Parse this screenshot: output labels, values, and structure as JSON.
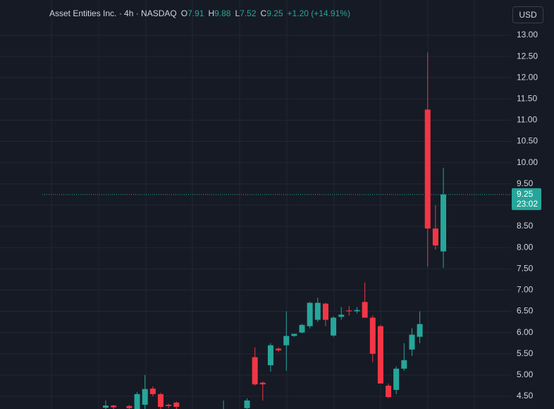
{
  "chart_data": {
    "type": "candlestick",
    "symbol": "Asset Entities Inc. · 4h · NASDAQ",
    "o_label": "O",
    "h_label": "H",
    "l_label": "L",
    "c_label": "C",
    "change": "+1.20 (+14.91%)",
    "currency": "USD",
    "countdown": "23:02",
    "up_color": "#26a69a",
    "down_color": "#f23645",
    "open": [
      4.23,
      4.28,
      null,
      4.27,
      4.2,
      4.3,
      4.68,
      4.55,
      4.3,
      4.35,
      null,
      null,
      null,
      null,
      null,
      4.15,
      null,
      null,
      4.22,
      5.42,
      4.82,
      5.23,
      5.62,
      5.7,
      5.92,
      6.0,
      6.15,
      6.3,
      6.68,
      5.93,
      6.37,
      6.52,
      6.5,
      6.72,
      6.35,
      6.15,
      4.75,
      4.65,
      5.15,
      5.6,
      5.9,
      11.25,
      8.45,
      7.91
    ],
    "high": [
      4.4,
      4.3,
      null,
      4.3,
      4.6,
      5.0,
      4.73,
      4.58,
      4.33,
      4.38,
      null,
      null,
      null,
      null,
      null,
      4.4,
      null,
      null,
      4.45,
      5.65,
      4.85,
      5.75,
      5.65,
      6.5,
      5.97,
      6.2,
      6.72,
      6.82,
      6.7,
      6.38,
      6.6,
      6.62,
      6.6,
      7.18,
      6.4,
      6.18,
      4.8,
      5.2,
      5.75,
      6.1,
      6.5,
      12.6,
      9.0,
      9.88
    ],
    "low": [
      4.15,
      4.18,
      null,
      4.15,
      4.15,
      4.2,
      4.5,
      4.2,
      4.22,
      4.15,
      null,
      null,
      null,
      null,
      null,
      4.05,
      null,
      null,
      4.15,
      4.75,
      4.4,
      5.08,
      5.55,
      5.1,
      5.9,
      5.98,
      6.1,
      6.25,
      6.15,
      5.9,
      6.3,
      6.4,
      6.45,
      6.35,
      5.3,
      4.8,
      4.45,
      4.55,
      5.1,
      5.45,
      5.75,
      7.55,
      7.95,
      7.52
    ],
    "close": [
      4.28,
      4.24,
      null,
      4.22,
      4.55,
      4.67,
      4.55,
      4.25,
      4.27,
      4.25,
      null,
      null,
      null,
      null,
      null,
      4.18,
      null,
      null,
      4.4,
      4.78,
      4.78,
      5.7,
      5.58,
      5.92,
      5.97,
      6.18,
      6.7,
      6.7,
      6.3,
      6.35,
      6.42,
      6.5,
      6.53,
      6.35,
      5.5,
      4.8,
      4.48,
      5.15,
      5.35,
      5.95,
      6.2,
      8.45,
      8.05,
      9.25
    ],
    "ylim": [
      4.2,
      13.83
    ],
    "yticks": [
      {
        "value": 4.5,
        "label": "4.50"
      },
      {
        "value": 5,
        "label": "5.00"
      },
      {
        "value": 5.5,
        "label": "5.50"
      },
      {
        "value": 6,
        "label": "6.00"
      },
      {
        "value": 6.5,
        "label": "6.50"
      },
      {
        "value": 7,
        "label": "7.00"
      },
      {
        "value": 7.5,
        "label": "7.50"
      },
      {
        "value": 8,
        "label": "8.00"
      },
      {
        "value": 8.5,
        "label": "8.50"
      },
      {
        "value": 9,
        "label": "9.00"
      },
      {
        "value": 9.5,
        "label": "9.50"
      },
      {
        "value": 10,
        "label": "10.00"
      },
      {
        "value": 10.5,
        "label": "10.50"
      },
      {
        "value": 11,
        "label": "11.00"
      },
      {
        "value": 11.5,
        "label": "11.50"
      },
      {
        "value": 12,
        "label": "12.00"
      },
      {
        "value": 12.5,
        "label": "12.50"
      },
      {
        "value": 13,
        "label": "13.00"
      }
    ],
    "grid": true
  }
}
